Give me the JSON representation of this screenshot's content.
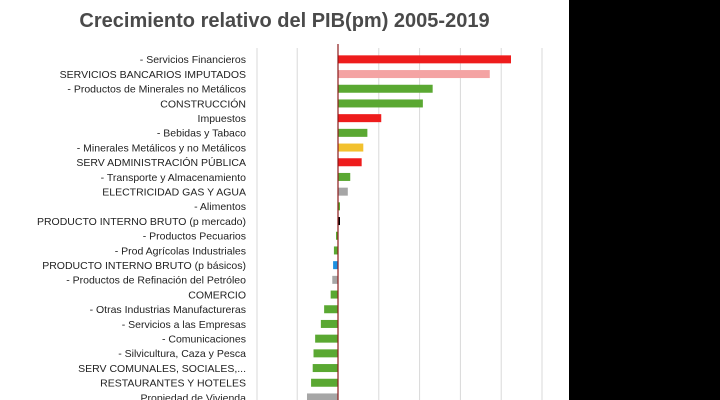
{
  "chart_data": {
    "type": "bar",
    "orientation": "horizontal",
    "title": "Crecimiento relativo del PIB(pm) 2005-2019",
    "reference_category": "PRODUCTO INTERNO BRUTO (p mercado)",
    "grid": true,
    "legend": "none",
    "axis_color": "#8b1a1a",
    "categories": [
      "- Servicios Financieros",
      "SERVICIOS BANCARIOS IMPUTADOS",
      "- Productos de Minerales no Metálicos",
      "CONSTRUCCIÓN",
      "Impuestos",
      "- Bebidas y Tabaco",
      "- Minerales Metálicos y no Metálicos",
      "SERV ADMINISTRACIÓN PÚBLICA",
      "- Transporte y Almacenamiento",
      "ELECTRICIDAD GAS Y AGUA",
      "- Alimentos",
      "PRODUCTO INTERNO BRUTO (p mercado)",
      "- Productos Pecuarios",
      "- Prod Agrícolas Industriales",
      "PRODUCTO INTERNO BRUTO  (p básicos)",
      "- Productos de Refinación del Petróleo",
      "COMERCIO",
      "- Otras Industrias Manufactureras",
      "- Servicios a las Empresas",
      "- Comunicaciones",
      "- Silvicultura, Caza y Pesca",
      "SERV COMUNALES, SOCIALES,...",
      "RESTAURANTES Y HOTELES",
      "Propiedad de Vivienda"
    ],
    "values": [
      2.12,
      1.86,
      1.16,
      1.04,
      0.53,
      0.36,
      0.31,
      0.29,
      0.15,
      0.12,
      0.0,
      0.0,
      -0.02,
      -0.05,
      -0.06,
      -0.07,
      -0.09,
      -0.17,
      -0.21,
      -0.28,
      -0.3,
      -0.31,
      -0.33,
      -0.38
    ],
    "colors": [
      "#ee1c1c",
      "#f4a3a3",
      "#5aa832",
      "#5aa832",
      "#ee1c1c",
      "#5aa832",
      "#f2c12e",
      "#ee1c1c",
      "#5aa832",
      "#a6a6a6",
      "#5aa832",
      "#000000",
      "#5aa832",
      "#5aa832",
      "#1e90e0",
      "#a6a6a6",
      "#5aa832",
      "#5aa832",
      "#5aa832",
      "#5aa832",
      "#5aa832",
      "#5aa832",
      "#5aa832",
      "#a6a6a6"
    ]
  }
}
